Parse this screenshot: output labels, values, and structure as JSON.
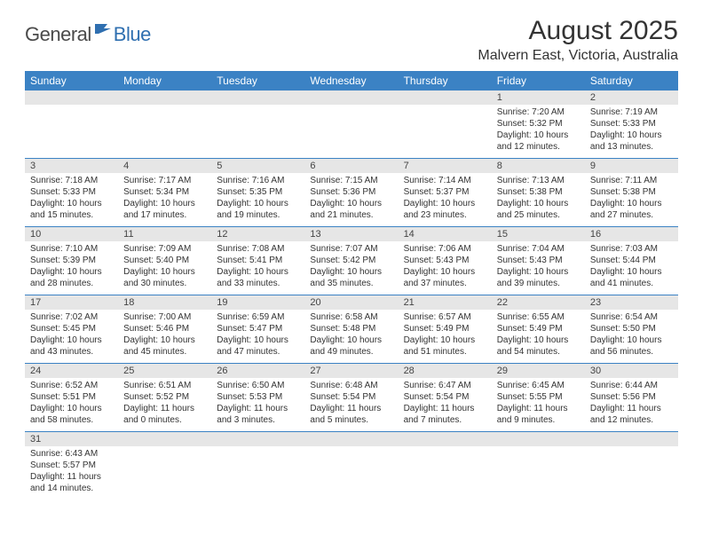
{
  "logo": {
    "general": "General",
    "blue": "Blue"
  },
  "title": "August 2025",
  "location": "Malvern East, Victoria, Australia",
  "colors": {
    "header_bg": "#3b82c4",
    "header_text": "#ffffff",
    "daynum_bg": "#e6e6e6",
    "border": "#3b82c4",
    "text": "#333333",
    "logo_gray": "#4a4a4a",
    "logo_blue": "#2f6fb0"
  },
  "dow": [
    "Sunday",
    "Monday",
    "Tuesday",
    "Wednesday",
    "Thursday",
    "Friday",
    "Saturday"
  ],
  "weeks": [
    [
      null,
      null,
      null,
      null,
      null,
      {
        "n": "1",
        "sr": "Sunrise: 7:20 AM",
        "ss": "Sunset: 5:32 PM",
        "dl1": "Daylight: 10 hours",
        "dl2": "and 12 minutes."
      },
      {
        "n": "2",
        "sr": "Sunrise: 7:19 AM",
        "ss": "Sunset: 5:33 PM",
        "dl1": "Daylight: 10 hours",
        "dl2": "and 13 minutes."
      }
    ],
    [
      {
        "n": "3",
        "sr": "Sunrise: 7:18 AM",
        "ss": "Sunset: 5:33 PM",
        "dl1": "Daylight: 10 hours",
        "dl2": "and 15 minutes."
      },
      {
        "n": "4",
        "sr": "Sunrise: 7:17 AM",
        "ss": "Sunset: 5:34 PM",
        "dl1": "Daylight: 10 hours",
        "dl2": "and 17 minutes."
      },
      {
        "n": "5",
        "sr": "Sunrise: 7:16 AM",
        "ss": "Sunset: 5:35 PM",
        "dl1": "Daylight: 10 hours",
        "dl2": "and 19 minutes."
      },
      {
        "n": "6",
        "sr": "Sunrise: 7:15 AM",
        "ss": "Sunset: 5:36 PM",
        "dl1": "Daylight: 10 hours",
        "dl2": "and 21 minutes."
      },
      {
        "n": "7",
        "sr": "Sunrise: 7:14 AM",
        "ss": "Sunset: 5:37 PM",
        "dl1": "Daylight: 10 hours",
        "dl2": "and 23 minutes."
      },
      {
        "n": "8",
        "sr": "Sunrise: 7:13 AM",
        "ss": "Sunset: 5:38 PM",
        "dl1": "Daylight: 10 hours",
        "dl2": "and 25 minutes."
      },
      {
        "n": "9",
        "sr": "Sunrise: 7:11 AM",
        "ss": "Sunset: 5:38 PM",
        "dl1": "Daylight: 10 hours",
        "dl2": "and 27 minutes."
      }
    ],
    [
      {
        "n": "10",
        "sr": "Sunrise: 7:10 AM",
        "ss": "Sunset: 5:39 PM",
        "dl1": "Daylight: 10 hours",
        "dl2": "and 28 minutes."
      },
      {
        "n": "11",
        "sr": "Sunrise: 7:09 AM",
        "ss": "Sunset: 5:40 PM",
        "dl1": "Daylight: 10 hours",
        "dl2": "and 30 minutes."
      },
      {
        "n": "12",
        "sr": "Sunrise: 7:08 AM",
        "ss": "Sunset: 5:41 PM",
        "dl1": "Daylight: 10 hours",
        "dl2": "and 33 minutes."
      },
      {
        "n": "13",
        "sr": "Sunrise: 7:07 AM",
        "ss": "Sunset: 5:42 PM",
        "dl1": "Daylight: 10 hours",
        "dl2": "and 35 minutes."
      },
      {
        "n": "14",
        "sr": "Sunrise: 7:06 AM",
        "ss": "Sunset: 5:43 PM",
        "dl1": "Daylight: 10 hours",
        "dl2": "and 37 minutes."
      },
      {
        "n": "15",
        "sr": "Sunrise: 7:04 AM",
        "ss": "Sunset: 5:43 PM",
        "dl1": "Daylight: 10 hours",
        "dl2": "and 39 minutes."
      },
      {
        "n": "16",
        "sr": "Sunrise: 7:03 AM",
        "ss": "Sunset: 5:44 PM",
        "dl1": "Daylight: 10 hours",
        "dl2": "and 41 minutes."
      }
    ],
    [
      {
        "n": "17",
        "sr": "Sunrise: 7:02 AM",
        "ss": "Sunset: 5:45 PM",
        "dl1": "Daylight: 10 hours",
        "dl2": "and 43 minutes."
      },
      {
        "n": "18",
        "sr": "Sunrise: 7:00 AM",
        "ss": "Sunset: 5:46 PM",
        "dl1": "Daylight: 10 hours",
        "dl2": "and 45 minutes."
      },
      {
        "n": "19",
        "sr": "Sunrise: 6:59 AM",
        "ss": "Sunset: 5:47 PM",
        "dl1": "Daylight: 10 hours",
        "dl2": "and 47 minutes."
      },
      {
        "n": "20",
        "sr": "Sunrise: 6:58 AM",
        "ss": "Sunset: 5:48 PM",
        "dl1": "Daylight: 10 hours",
        "dl2": "and 49 minutes."
      },
      {
        "n": "21",
        "sr": "Sunrise: 6:57 AM",
        "ss": "Sunset: 5:49 PM",
        "dl1": "Daylight: 10 hours",
        "dl2": "and 51 minutes."
      },
      {
        "n": "22",
        "sr": "Sunrise: 6:55 AM",
        "ss": "Sunset: 5:49 PM",
        "dl1": "Daylight: 10 hours",
        "dl2": "and 54 minutes."
      },
      {
        "n": "23",
        "sr": "Sunrise: 6:54 AM",
        "ss": "Sunset: 5:50 PM",
        "dl1": "Daylight: 10 hours",
        "dl2": "and 56 minutes."
      }
    ],
    [
      {
        "n": "24",
        "sr": "Sunrise: 6:52 AM",
        "ss": "Sunset: 5:51 PM",
        "dl1": "Daylight: 10 hours",
        "dl2": "and 58 minutes."
      },
      {
        "n": "25",
        "sr": "Sunrise: 6:51 AM",
        "ss": "Sunset: 5:52 PM",
        "dl1": "Daylight: 11 hours",
        "dl2": "and 0 minutes."
      },
      {
        "n": "26",
        "sr": "Sunrise: 6:50 AM",
        "ss": "Sunset: 5:53 PM",
        "dl1": "Daylight: 11 hours",
        "dl2": "and 3 minutes."
      },
      {
        "n": "27",
        "sr": "Sunrise: 6:48 AM",
        "ss": "Sunset: 5:54 PM",
        "dl1": "Daylight: 11 hours",
        "dl2": "and 5 minutes."
      },
      {
        "n": "28",
        "sr": "Sunrise: 6:47 AM",
        "ss": "Sunset: 5:54 PM",
        "dl1": "Daylight: 11 hours",
        "dl2": "and 7 minutes."
      },
      {
        "n": "29",
        "sr": "Sunrise: 6:45 AM",
        "ss": "Sunset: 5:55 PM",
        "dl1": "Daylight: 11 hours",
        "dl2": "and 9 minutes."
      },
      {
        "n": "30",
        "sr": "Sunrise: 6:44 AM",
        "ss": "Sunset: 5:56 PM",
        "dl1": "Daylight: 11 hours",
        "dl2": "and 12 minutes."
      }
    ],
    [
      {
        "n": "31",
        "sr": "Sunrise: 6:43 AM",
        "ss": "Sunset: 5:57 PM",
        "dl1": "Daylight: 11 hours",
        "dl2": "and 14 minutes."
      },
      null,
      null,
      null,
      null,
      null,
      null
    ]
  ]
}
